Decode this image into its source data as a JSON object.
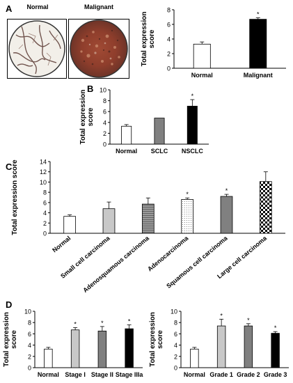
{
  "panels": {
    "A": "A",
    "B": "B",
    "C": "C",
    "D": "D"
  },
  "images": {
    "normal_label": "Normal",
    "malignant_label": "Malignant"
  },
  "chart_data": [
    {
      "id": "A",
      "type": "bar",
      "categories": [
        "Normal",
        "Malignant"
      ],
      "values": [
        3.3,
        6.7
      ],
      "errors": [
        0.3,
        0.2
      ],
      "fills": [
        "white",
        "black"
      ],
      "significance": [
        "",
        "*"
      ],
      "ylabel": "Total expression score",
      "ylim": [
        0,
        8
      ],
      "yticks": [
        0,
        2,
        4,
        6,
        8
      ]
    },
    {
      "id": "B",
      "type": "bar",
      "categories": [
        "Normal",
        "SCLC",
        "NSCLC"
      ],
      "values": [
        3.3,
        4.8,
        7.0
      ],
      "errors": [
        0.3,
        0.0,
        1.2
      ],
      "fills": [
        "white",
        "gray",
        "black"
      ],
      "significance": [
        "",
        "",
        "*"
      ],
      "ylabel": "Total expression score",
      "ylim": [
        0,
        10
      ],
      "yticks": [
        0,
        2,
        4,
        6,
        8,
        10
      ]
    },
    {
      "id": "C",
      "type": "bar",
      "categories": [
        "Normal",
        "Small cell carcinoma",
        "Adenosquamous carcinoma",
        "Adenocarcinoma",
        "Squamous cell carcinoma",
        "Large cell carcinoma"
      ],
      "values": [
        3.3,
        4.8,
        5.7,
        6.6,
        7.2,
        10.1
      ],
      "errors": [
        0.3,
        1.3,
        1.2,
        0.3,
        0.4,
        1.9
      ],
      "fills": [
        "white",
        "lightgray",
        "stripes",
        "dots",
        "gray",
        "checker"
      ],
      "significance": [
        "",
        "",
        "",
        "*",
        "*",
        ""
      ],
      "ylabel": "Total expression score",
      "ylim": [
        0,
        14
      ],
      "yticks": [
        0,
        2,
        4,
        6,
        8,
        10,
        12,
        14
      ]
    },
    {
      "id": "D1",
      "type": "bar",
      "categories": [
        "Normal",
        "Stage I",
        "Stage II",
        "Stage IIIa"
      ],
      "values": [
        3.3,
        6.7,
        6.5,
        6.9
      ],
      "errors": [
        0.3,
        0.4,
        0.8,
        0.7
      ],
      "fills": [
        "white",
        "lightgray",
        "gray",
        "black"
      ],
      "significance": [
        "",
        "*",
        "*",
        "*"
      ],
      "ylabel": "Total expression score",
      "ylim": [
        0,
        10
      ],
      "yticks": [
        0,
        2,
        4,
        6,
        8,
        10
      ]
    },
    {
      "id": "D2",
      "type": "bar",
      "categories": [
        "Normal",
        "Grade 1",
        "Grade 2",
        "Grade 3"
      ],
      "values": [
        3.3,
        7.4,
        7.4,
        6.1
      ],
      "errors": [
        0.3,
        1.2,
        0.4,
        0.3
      ],
      "fills": [
        "white",
        "lightgray",
        "gray",
        "black"
      ],
      "significance": [
        "",
        "*",
        "*",
        "*"
      ],
      "ylabel": "Total expression score",
      "ylim": [
        0,
        10
      ],
      "yticks": [
        0,
        2,
        4,
        6,
        8,
        10
      ]
    }
  ]
}
